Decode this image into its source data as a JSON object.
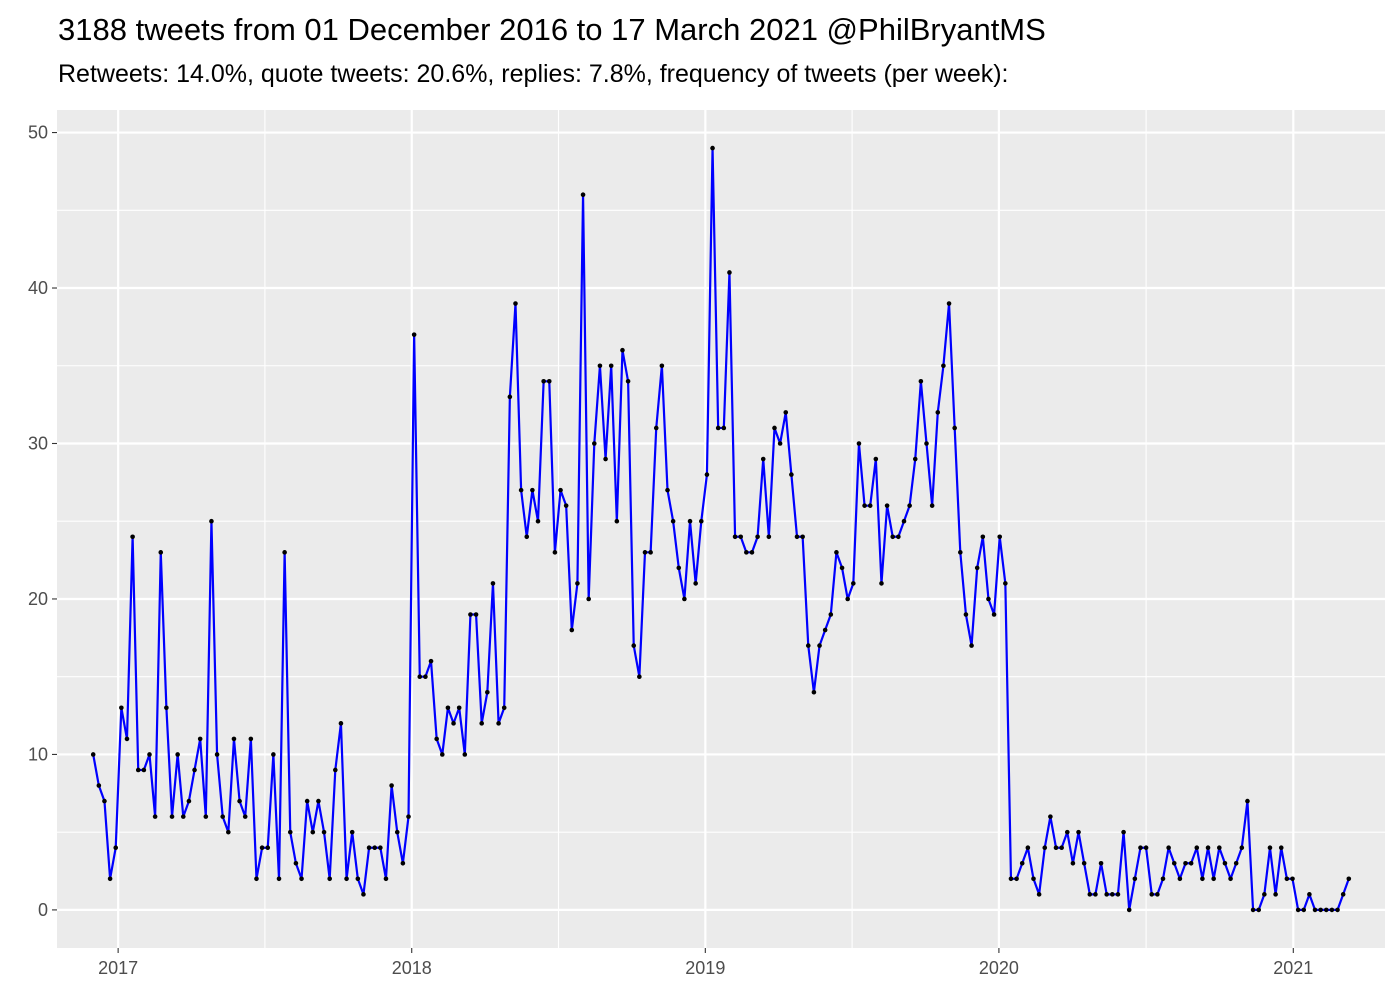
{
  "title": "3188 tweets from 01 December 2016 to 17 March 2021 @PhilBryantMS",
  "subtitle": "Retweets: 14.0%, quote tweets: 20.6%, replies: 7.8%, frequency of tweets (per week):",
  "colors": {
    "line": "#0000ff",
    "point": "#000000",
    "panel": "#ebebeb",
    "grid": "#ffffff"
  },
  "chart_data": {
    "type": "line",
    "grid": true,
    "x_is_date": true,
    "xlim": [
      "2016-10-17",
      "2021-04-25"
    ],
    "ylim": [
      -2.45,
      51.45
    ],
    "x_ticks": [
      "2017-01-01",
      "2018-01-01",
      "2019-01-01",
      "2020-01-01",
      "2021-01-01"
    ],
    "x_tick_labels": [
      "2017",
      "2018",
      "2019",
      "2020",
      "2021"
    ],
    "y_ticks": [
      0,
      10,
      20,
      30,
      40,
      50
    ],
    "y_tick_labels": [
      "0",
      "10",
      "20",
      "30",
      "40",
      "50"
    ],
    "series": [
      {
        "start_date": "2016-12-01",
        "interval_days": 7,
        "values": [
          10,
          8,
          7,
          2,
          4,
          13,
          11,
          24,
          9,
          9,
          10,
          6,
          23,
          13,
          6,
          10,
          6,
          7,
          9,
          11,
          6,
          25,
          10,
          6,
          5,
          11,
          7,
          6,
          11,
          2,
          4,
          4,
          10,
          2,
          23,
          5,
          3,
          2,
          7,
          5,
          7,
          5,
          2,
          9,
          12,
          2,
          5,
          2,
          1,
          4,
          4,
          4,
          2,
          8,
          5,
          3,
          6,
          37,
          15,
          15,
          16,
          11,
          10,
          13,
          12,
          13,
          10,
          19,
          19,
          12,
          14,
          21,
          12,
          13,
          33,
          39,
          27,
          24,
          27,
          25,
          34,
          34,
          23,
          27,
          26,
          18,
          21,
          46,
          20,
          30,
          35,
          29,
          35,
          25,
          36,
          34,
          17,
          15,
          23,
          23,
          31,
          35,
          27,
          25,
          22,
          20,
          25,
          21,
          25,
          28,
          49,
          31,
          31,
          41,
          24,
          24,
          23,
          23,
          24,
          29,
          24,
          31,
          30,
          32,
          28,
          24,
          24,
          17,
          14,
          17,
          18,
          19,
          23,
          22,
          20,
          21,
          30,
          26,
          26,
          29,
          21,
          26,
          24,
          24,
          25,
          26,
          29,
          34,
          30,
          26,
          32,
          35,
          39,
          31,
          23,
          19,
          17,
          22,
          24,
          20,
          19,
          24,
          21,
          2,
          2,
          3,
          4,
          2,
          1,
          4,
          6,
          4,
          4,
          5,
          3,
          5,
          3,
          1,
          1,
          3,
          1,
          1,
          1,
          5,
          0,
          2,
          4,
          4,
          1,
          1,
          2,
          4,
          3,
          2,
          3,
          3,
          4,
          2,
          4,
          2,
          4,
          3,
          2,
          3,
          4,
          7,
          0,
          0,
          1,
          4,
          1,
          4,
          2,
          2,
          0,
          0,
          1,
          0,
          0,
          0,
          0,
          0,
          1,
          2
        ]
      }
    ]
  }
}
